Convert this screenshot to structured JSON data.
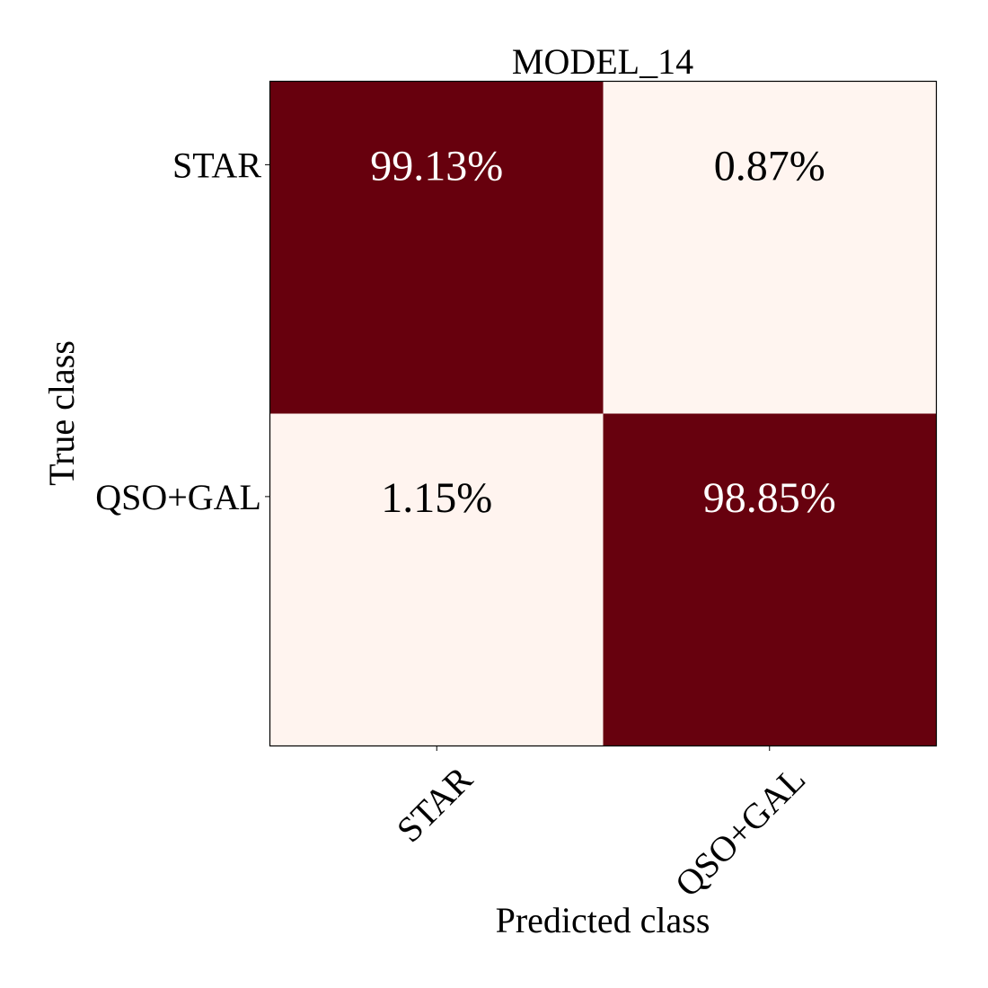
{
  "chart_data": {
    "type": "heatmap",
    "title": "MODEL_14",
    "xlabel": "Predicted class",
    "ylabel": "True class",
    "x_categories": [
      "STAR",
      "QSO+GAL"
    ],
    "y_categories": [
      "STAR",
      "QSO+GAL"
    ],
    "values": [
      [
        99.13,
        0.87
      ],
      [
        1.15,
        98.85
      ]
    ],
    "value_labels": [
      [
        "99.13%",
        "0.87%"
      ],
      [
        "1.15%",
        "98.85%"
      ]
    ],
    "colormap": {
      "low": "#fff5f0",
      "high": "#67000d",
      "text_on_high": "#ffffff",
      "text_on_low": "#000000"
    },
    "grid": false,
    "legend": "none"
  }
}
